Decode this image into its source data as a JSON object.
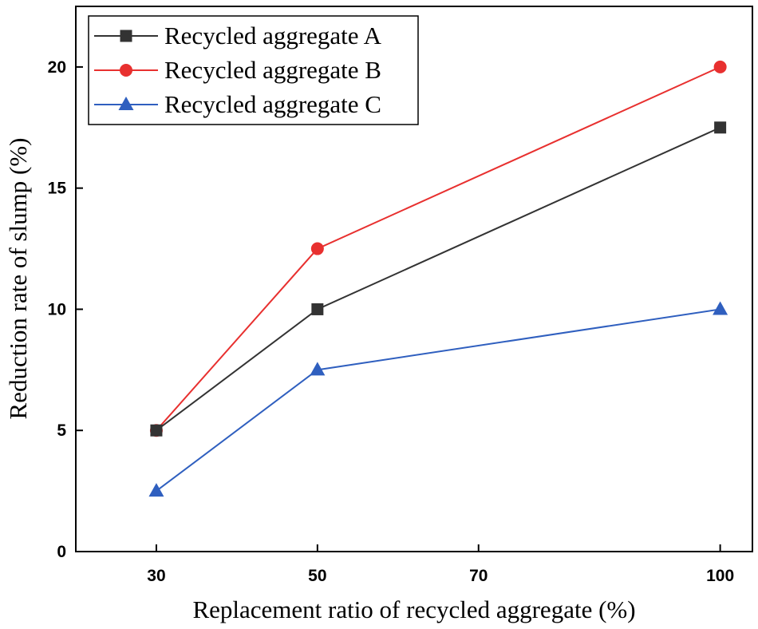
{
  "chart_data": {
    "type": "line",
    "title": "",
    "xlabel": "Replacement ratio of recycled aggregate (%)",
    "ylabel": "Reduction rate of slump (%)",
    "x": [
      30,
      50,
      100
    ],
    "x_ticks": [
      30,
      50,
      70,
      100
    ],
    "y_ticks": [
      0,
      5,
      10,
      15,
      20
    ],
    "ylim": [
      0,
      22.5
    ],
    "grid": false,
    "legend_position": "top-left",
    "series": [
      {
        "name": "Recycled aggregate A",
        "values": [
          5,
          10,
          17.5
        ],
        "color": "#333333",
        "marker": "square"
      },
      {
        "name": "Recycled aggregate B",
        "values": [
          5,
          12.5,
          20
        ],
        "color": "#e8302f",
        "marker": "circle"
      },
      {
        "name": "Recycled aggregate C",
        "values": [
          2.5,
          7.5,
          10
        ],
        "color": "#2f5fbf",
        "marker": "triangle"
      }
    ]
  }
}
